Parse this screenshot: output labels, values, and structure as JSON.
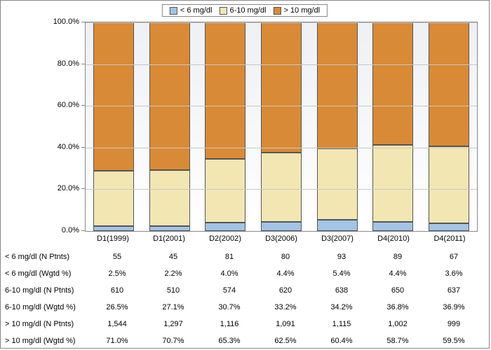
{
  "chart": {
    "type": "stacked-bar-100",
    "background_gradient": [
      "#eef0f4",
      "#ffffff"
    ],
    "grid_color": "#c8c8c8",
    "border_color": "#888888",
    "ylim": [
      0,
      100
    ],
    "ytick_step": 20,
    "yticks": [
      "0.0%",
      "20.0%",
      "40.0%",
      "60.0%",
      "80.0%",
      "100.0%"
    ],
    "categories": [
      "D1(1999)",
      "D1(2001)",
      "D2(2002)",
      "D3(2006)",
      "D3(2007)",
      "D4(2010)",
      "D4(2011)"
    ],
    "series": [
      {
        "name": "< 6 mg/dl",
        "color": "#a2c4e6",
        "values": [
          2.5,
          2.2,
          4.0,
          4.4,
          5.4,
          4.4,
          3.6
        ]
      },
      {
        "name": "6-10 mg/dl",
        "color": "#f2e6b3",
        "values": [
          26.5,
          27.1,
          30.7,
          33.2,
          34.2,
          36.8,
          36.9
        ]
      },
      {
        "name": "> 10 mg/dl",
        "color": "#d98a36",
        "values": [
          71.0,
          70.7,
          65.3,
          62.5,
          60.4,
          58.7,
          59.5
        ]
      }
    ],
    "legend": {
      "items": [
        "< 6 mg/dl",
        "6-10 mg/dl",
        "> 10 mg/dl"
      ],
      "colors": [
        "#a2c4e6",
        "#f2e6b3",
        "#d98a36"
      ]
    },
    "table": {
      "rows": [
        {
          "label": "< 6 mg/dl  (N Ptnts)",
          "cells": [
            "55",
            "45",
            "81",
            "80",
            "93",
            "89",
            "67"
          ]
        },
        {
          "label": "< 6 mg/dl  (Wgtd %)",
          "cells": [
            "2.5%",
            "2.2%",
            "4.0%",
            "4.4%",
            "5.4%",
            "4.4%",
            "3.6%"
          ]
        },
        {
          "label": "6-10 mg/dl (N Ptnts)",
          "cells": [
            "610",
            "510",
            "574",
            "620",
            "638",
            "650",
            "637"
          ]
        },
        {
          "label": "6-10 mg/dl (Wgtd %)",
          "cells": [
            "26.5%",
            "27.1%",
            "30.7%",
            "33.2%",
            "34.2%",
            "36.8%",
            "36.9%"
          ]
        },
        {
          "label": "> 10 mg/dl (N Ptnts)",
          "cells": [
            "1,544",
            "1,297",
            "1,116",
            "1,091",
            "1,115",
            "1,002",
            "999"
          ]
        },
        {
          "label": "> 10 mg/dl (Wgtd %)",
          "cells": [
            "71.0%",
            "70.7%",
            "65.3%",
            "62.5%",
            "60.4%",
            "58.7%",
            "59.5%"
          ]
        }
      ]
    }
  }
}
